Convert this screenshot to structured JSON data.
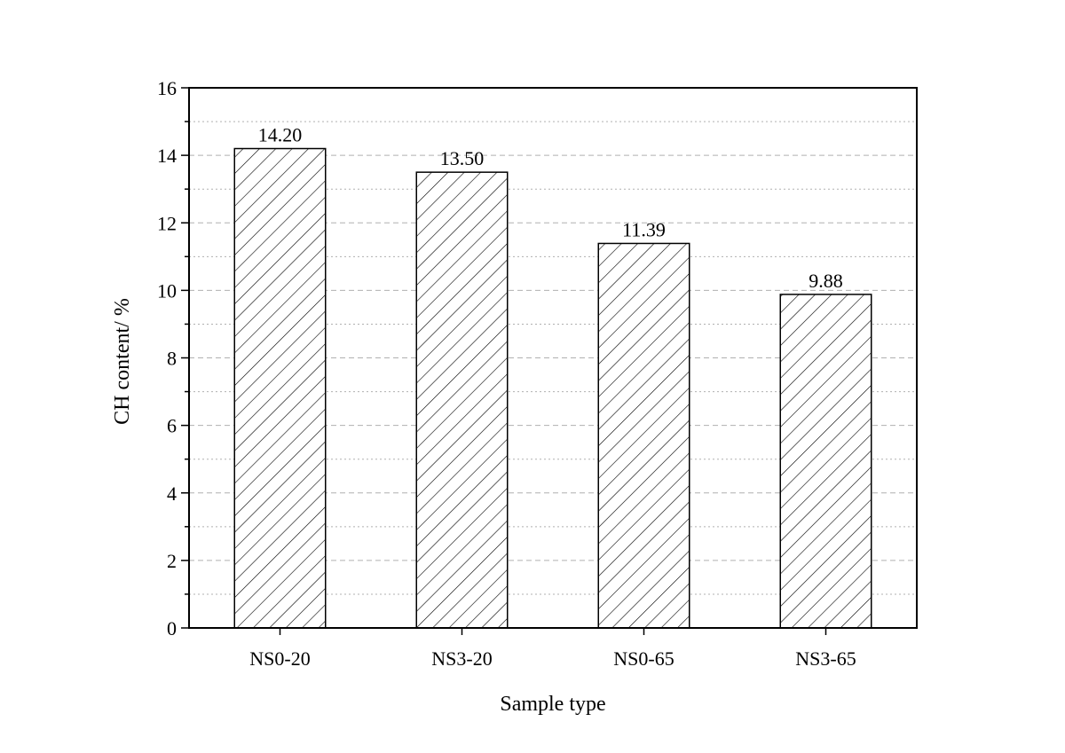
{
  "chart_data": {
    "type": "bar",
    "title": "",
    "xlabel": "Sample type",
    "ylabel": "CH content/ %",
    "categories": [
      "NS0-20",
      "NS3-20",
      "NS0-65",
      "NS3-65"
    ],
    "values": [
      14.2,
      13.5,
      11.39,
      9.88
    ],
    "data_labels": [
      "14.20",
      "13.50",
      "11.39",
      "9.88"
    ],
    "ylim": [
      0,
      16
    ],
    "y_major_ticks": [
      0,
      2,
      4,
      6,
      8,
      10,
      12,
      14,
      16
    ],
    "y_minor_step": 1,
    "grid": true,
    "legend": "none",
    "bar_fill": "hatched",
    "colors": {
      "bar_edge": "#000000",
      "hatch": "#000000",
      "grid": "#b0b0b0"
    }
  }
}
